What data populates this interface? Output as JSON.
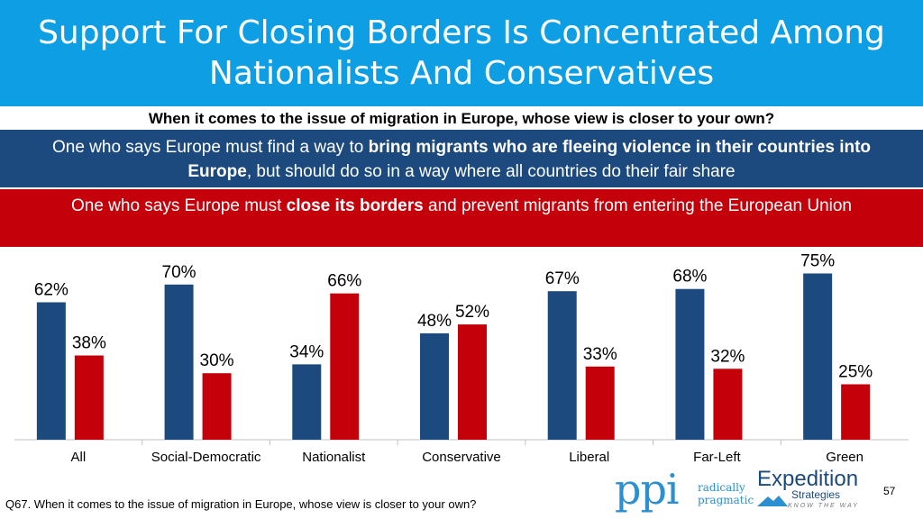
{
  "header": {
    "title_line1": "Support For Closing Borders Is Concentrated Among",
    "title_line2": "Nationalists And Conservatives"
  },
  "question": "When it comes to the issue of migration in Europe, whose view is closer to your own?",
  "option_blue": {
    "pre": "One who says Europe must find a way to ",
    "bold": "bring migrants who are fleeing violence in their countries into Europe",
    "post": ", but should do so in a way where all countries do their fair share"
  },
  "option_red": {
    "pre": "One who says Europe must ",
    "bold": "close its borders",
    "post": " and prevent migrants from entering the European Union"
  },
  "colors": {
    "title_bar": "#0d9ee3",
    "blue": "#1d4a7e",
    "red": "#c4000b"
  },
  "chart_data": {
    "type": "bar",
    "categories": [
      "All",
      "Social-Democratic",
      "Nationalist",
      "Conservative",
      "Liberal",
      "Far-Left",
      "Green"
    ],
    "series": [
      {
        "values": [
          62,
          70,
          34,
          48,
          67,
          68,
          75
        ],
        "color": "#1d4a7e"
      },
      {
        "values": [
          38,
          30,
          66,
          52,
          33,
          32,
          25
        ],
        "color": "#c4000b"
      }
    ],
    "labels": [
      [
        "62%",
        "70%",
        "34%",
        "48%",
        "67%",
        "68%",
        "75%"
      ],
      [
        "38%",
        "30%",
        "66%",
        "52%",
        "33%",
        "32%",
        "25%"
      ]
    ],
    "ylim": [
      0,
      100
    ],
    "grid": false
  },
  "footer": {
    "footnote": "Q67. When it comes to the issue of migration in Europe, whose view is closer to your own?",
    "page_number": "57",
    "ppi_letters": "ppi",
    "ppi_tag1": "radically",
    "ppi_tag2": "pragmatic",
    "expedition_name": "Expedition",
    "expedition_sub": "Strategies",
    "expedition_tag": "KNOW THE WAY"
  }
}
